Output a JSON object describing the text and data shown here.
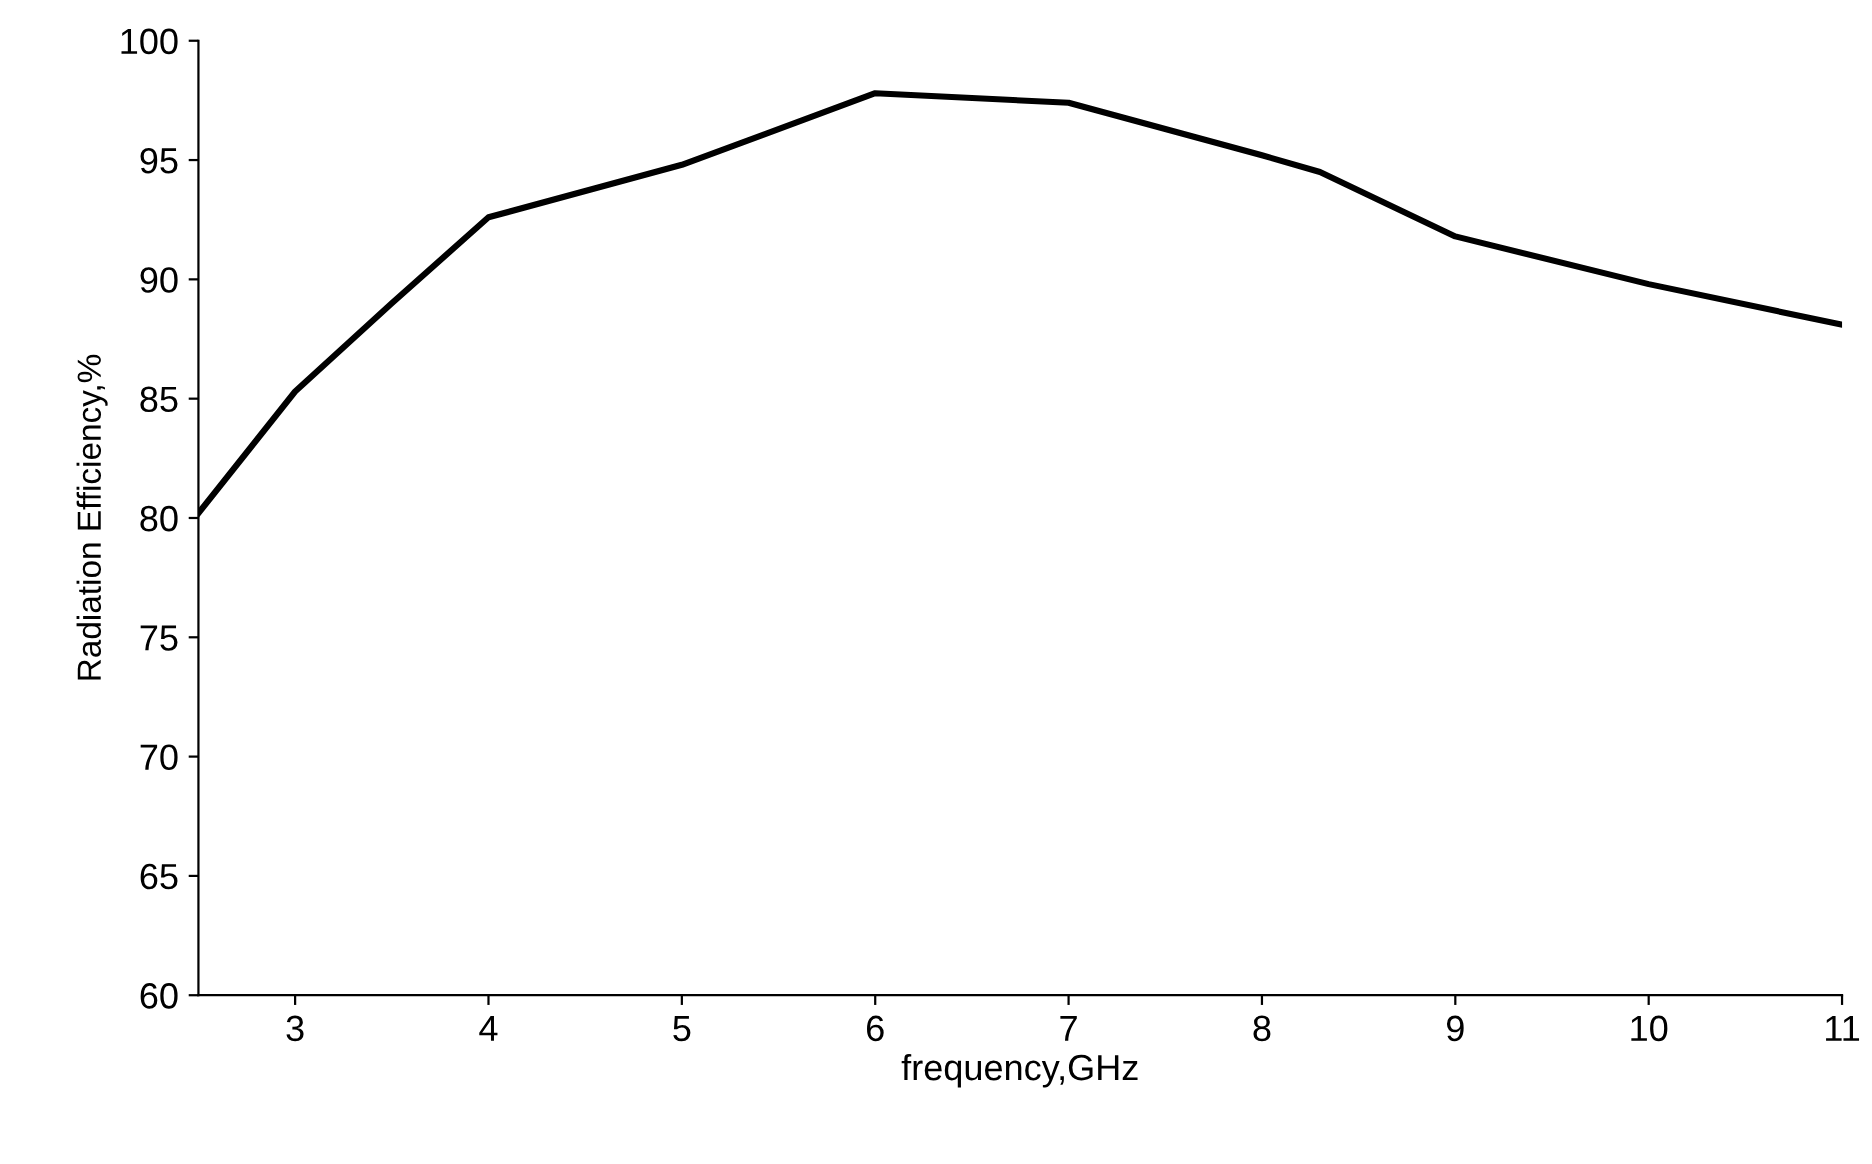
{
  "chart_data": {
    "type": "line",
    "xlabel": "frequency,GHz",
    "ylabel": "Radiation Efficiency,%",
    "x": [
      2.5,
      3,
      3.5,
      4,
      5,
      6,
      7,
      8,
      8.3,
      9,
      10,
      11
    ],
    "series": [
      {
        "color": "#000000",
        "values": [
          80.2,
          85.3,
          89.0,
          92.6,
          94.8,
          97.8,
          97.4,
          95.2,
          94.5,
          91.8,
          89.8,
          88.1
        ]
      }
    ],
    "xlim": [
      2.5,
      11
    ],
    "xticks": [
      3,
      4,
      5,
      6,
      7,
      8,
      9,
      10,
      11
    ],
    "ylim": [
      60,
      100
    ],
    "yticks": [
      60,
      65,
      70,
      75,
      80,
      85,
      90,
      95,
      100
    ],
    "grid": false,
    "marker": "none",
    "line_style": "solid"
  }
}
